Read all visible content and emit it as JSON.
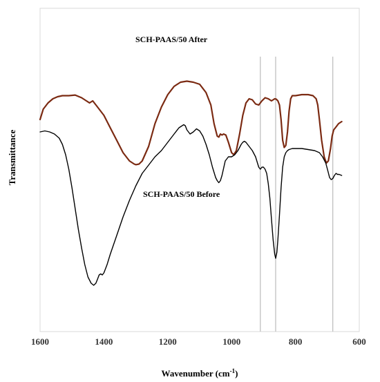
{
  "chart_data": {
    "type": "line",
    "title": "",
    "xlabel": "Wavenumber (cm⁻¹)",
    "xlabel_base": "Wavenumber (cm",
    "xlabel_sup": "-1",
    "xlabel_close": ")",
    "ylabel": "Transmittance",
    "xlim": [
      1600,
      600
    ],
    "x_reversed": true,
    "x_ticks": [
      1600,
      1400,
      1200,
      1000,
      800,
      600
    ],
    "ylim": [
      0,
      100
    ],
    "y_ticks_shown": false,
    "grid": false,
    "reference_lines_x": [
      910,
      862,
      683
    ],
    "reference_line_color": "#c0c0c0",
    "series": [
      {
        "name": "SCH-PAAS/50 After",
        "color": "#7b2a12",
        "x": [
          1600,
          1590,
          1575,
          1560,
          1545,
          1530,
          1510,
          1490,
          1470,
          1455,
          1445,
          1435,
          1420,
          1400,
          1380,
          1360,
          1340,
          1320,
          1305,
          1300,
          1290,
          1280,
          1260,
          1240,
          1220,
          1200,
          1180,
          1160,
          1140,
          1120,
          1100,
          1080,
          1065,
          1055,
          1045,
          1040,
          1035,
          1030,
          1025,
          1018,
          1010,
          1000,
          993,
          985,
          975,
          965,
          955,
          945,
          935,
          925,
          915,
          905,
          895,
          885,
          875,
          870,
          865,
          860,
          855,
          850,
          845,
          840,
          835,
          830,
          825,
          820,
          815,
          810,
          800,
          780,
          760,
          745,
          735,
          730,
          725,
          718,
          710,
          703,
          697,
          690,
          685,
          680,
          675,
          670,
          665,
          660,
          655
        ],
        "y": [
          78,
          83,
          86,
          88,
          89,
          89.5,
          89.5,
          89.8,
          88.5,
          87,
          86,
          87,
          84,
          80,
          74,
          68,
          62,
          58,
          56.5,
          56.2,
          56.5,
          58,
          65,
          76,
          84,
          90,
          94,
          96,
          96.5,
          96,
          95,
          91,
          85,
          76,
          70,
          69.5,
          71,
          70.5,
          71,
          70.5,
          67,
          62,
          61,
          63,
          71,
          80,
          86,
          88,
          87.5,
          85.5,
          85,
          87,
          88.5,
          88,
          87,
          87.5,
          88,
          87.8,
          87,
          85,
          78,
          68,
          64.5,
          65.5,
          72,
          82,
          88,
          89.5,
          89.5,
          90,
          90,
          89.5,
          88,
          85,
          78,
          68,
          60,
          57,
          58,
          64,
          70,
          73,
          74,
          75,
          76,
          76.5,
          77
        ]
      },
      {
        "name": "SCH-PAAS/50 Before",
        "color": "#000000",
        "x": [
          1600,
          1585,
          1570,
          1555,
          1540,
          1530,
          1520,
          1510,
          1500,
          1490,
          1480,
          1470,
          1460,
          1450,
          1440,
          1432,
          1425,
          1420,
          1415,
          1410,
          1405,
          1400,
          1390,
          1380,
          1360,
          1340,
          1320,
          1300,
          1280,
          1260,
          1240,
          1220,
          1200,
          1180,
          1165,
          1155,
          1150,
          1145,
          1140,
          1130,
          1120,
          1110,
          1100,
          1090,
          1080,
          1070,
          1060,
          1050,
          1045,
          1040,
          1035,
          1030,
          1020,
          1010,
          1000,
          990,
          980,
          970,
          965,
          960,
          955,
          945,
          935,
          925,
          915,
          910,
          905,
          900,
          895,
          890,
          885,
          880,
          875,
          870,
          865,
          862,
          858,
          855,
          850,
          845,
          840,
          835,
          830,
          825,
          820,
          810,
          800,
          780,
          760,
          740,
          725,
          715,
          705,
          698,
          693,
          688,
          683,
          678,
          673,
          668,
          663,
          655
        ],
        "y": [
          72,
          72.5,
          72,
          71,
          69,
          66,
          61,
          54,
          45,
          35,
          25,
          16,
          8,
          2,
          -1,
          -2,
          -1,
          1,
          3,
          3.5,
          3,
          4,
          8,
          13,
          22,
          31,
          39,
          46,
          52,
          56,
          60,
          63,
          67,
          71,
          74,
          75,
          75.5,
          75,
          73,
          71,
          72,
          73.5,
          72.5,
          70,
          66,
          61,
          55,
          50,
          48.5,
          47.5,
          48.5,
          51,
          58,
          60,
          60,
          61,
          63,
          66,
          67,
          67.5,
          67,
          65,
          63,
          60,
          55,
          54,
          55,
          55,
          54,
          52,
          47,
          40,
          30,
          20,
          13,
          11,
          14,
          20,
          32,
          45,
          55,
          60,
          62,
          63,
          63.5,
          64,
          64,
          64,
          63.5,
          63,
          62,
          60,
          57,
          53,
          50,
          49,
          49.5,
          51,
          52,
          51.5,
          51.5,
          51
        ]
      }
    ]
  }
}
